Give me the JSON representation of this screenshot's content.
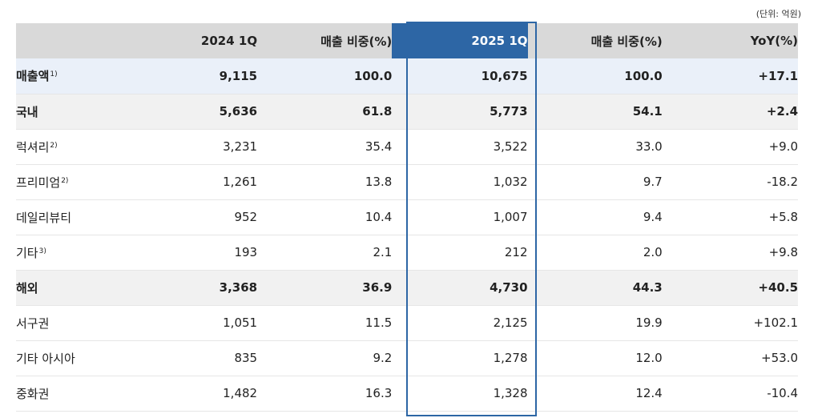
{
  "unit_note": "(단위: 억원)",
  "headers": [
    "",
    "2024 1Q",
    "매출 비중(%)",
    "2025 1Q",
    "매출 비중(%)",
    "YoY(%)"
  ],
  "rows": [
    {
      "label": "매출액",
      "note": "1)",
      "values": [
        "9,115",
        "100.0",
        "10,675",
        "100.0",
        "+17.1"
      ],
      "level": "total"
    },
    {
      "label": "국내",
      "note": "",
      "values": [
        "5,636",
        "61.8",
        "5,773",
        "54.1",
        "+2.4"
      ],
      "level": "group"
    },
    {
      "label": "럭셔리",
      "note": "2)",
      "values": [
        "3,231",
        "35.4",
        "3,522",
        "33.0",
        "+9.0"
      ],
      "level": "item"
    },
    {
      "label": "프리미엄",
      "note": "2)",
      "values": [
        "1,261",
        "13.8",
        "1,032",
        "9.7",
        "-18.2"
      ],
      "level": "item"
    },
    {
      "label": "데일리뷰티",
      "note": "",
      "values": [
        "952",
        "10.4",
        "1,007",
        "9.4",
        "+5.8"
      ],
      "level": "item"
    },
    {
      "label": "기타",
      "note": "3)",
      "values": [
        "193",
        "2.1",
        "212",
        "2.0",
        "+9.8"
      ],
      "level": "item"
    },
    {
      "label": "해외",
      "note": "",
      "values": [
        "3,368",
        "36.9",
        "4,730",
        "44.3",
        "+40.5"
      ],
      "level": "group"
    },
    {
      "label": "서구권",
      "note": "",
      "values": [
        "1,051",
        "11.5",
        "2,125",
        "19.9",
        "+102.1"
      ],
      "level": "item"
    },
    {
      "label": "기타 아시아",
      "note": "",
      "values": [
        "835",
        "9.2",
        "1,278",
        "12.0",
        "+53.0"
      ],
      "level": "item"
    },
    {
      "label": "중화권",
      "note": "",
      "values": [
        "1,482",
        "16.3",
        "1,328",
        "12.4",
        "-10.4"
      ],
      "level": "item"
    }
  ],
  "colors": {
    "header_bg": "#d9d9d9",
    "highlight": "#2d66a5",
    "total_row_bg": "#eaf0f9",
    "group_row_bg": "#f1f1f1"
  }
}
